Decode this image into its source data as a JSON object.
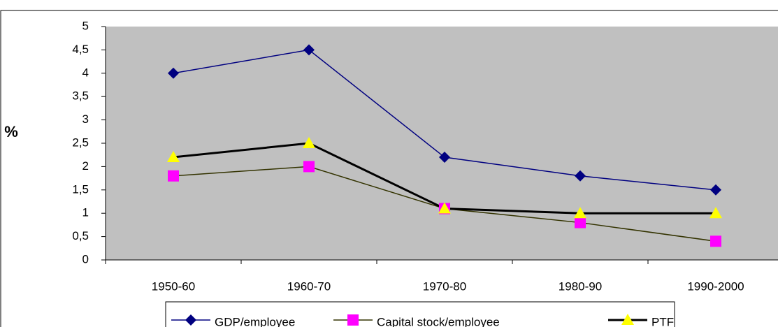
{
  "chart_data": {
    "type": "line",
    "y_label": "%",
    "categories": [
      "1950-60",
      "1960-70",
      "1970-80",
      "1980-90",
      "1990-2000"
    ],
    "series": [
      {
        "name": "GDP/employee",
        "color": "#000080",
        "marker": "diamond",
        "marker_color": "#000080",
        "values": [
          4,
          4.5,
          2.2,
          1.8,
          1.5
        ]
      },
      {
        "name": "Capital stock/employee",
        "color": "#333300",
        "marker": "square",
        "marker_color": "#ff00ff",
        "values": [
          1.8,
          2.0,
          1.1,
          0.8,
          0.4
        ]
      },
      {
        "name": "PTF",
        "color": "#000000",
        "marker": "triangle",
        "marker_color": "#ffff00",
        "line_width": 3,
        "values": [
          2.2,
          2.5,
          1.1,
          1.0,
          1.0
        ]
      }
    ],
    "ylim": [
      0,
      5
    ],
    "yticks": [
      0,
      {
        "value": 0.5,
        "label": "0,5"
      },
      1,
      {
        "value": 1.5,
        "label": "1,5"
      },
      2,
      {
        "value": 2.5,
        "label": "2,5"
      },
      3,
      {
        "value": 3.5,
        "label": "3,5"
      },
      4,
      {
        "value": 4.5,
        "label": "4,5"
      },
      5
    ],
    "plot_background": "#c0c0c0",
    "legend": "bottom"
  }
}
